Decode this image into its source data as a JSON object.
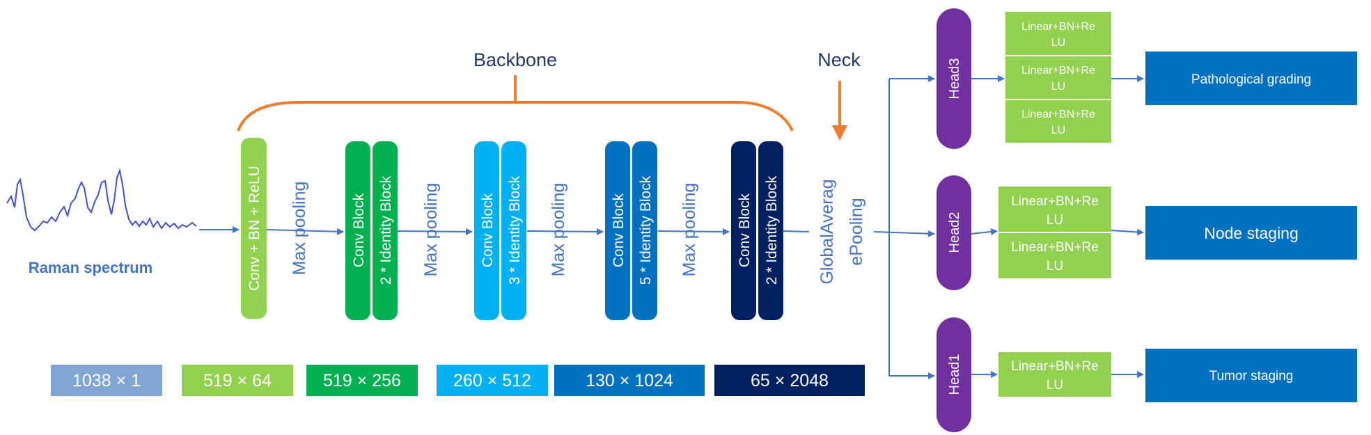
{
  "labels": {
    "backbone": "Backbone",
    "neck": "Neck",
    "raman": "Raman spectrum"
  },
  "blocks": {
    "conv_bn_relu": "Conv + BN + ReLU",
    "max_pool": "Max pooling",
    "conv_block": "Conv Block",
    "id2": "2 * Identity Block",
    "id3": "3 * Identity Block",
    "id5": "5 * Identity Block",
    "gap_line1": "GlobalAverag",
    "gap_line2": "ePooling"
  },
  "dims": [
    "1038 × 1",
    "519 × 64",
    "519 × 256",
    "260 × 512",
    "130 × 1024",
    "65 × 2048"
  ],
  "heads": {
    "head3": "Head3",
    "head2": "Head2",
    "head1": "Head1",
    "lin_a": "Linear+BN+Re",
    "lin_b": "LU"
  },
  "outputs": {
    "pathological": "Pathological grading",
    "node": "Node staging",
    "tumor": "Tumor staging"
  },
  "colors": {
    "arrow": "#4472C4",
    "brace": "#ED7D31",
    "light_green": "#92D050",
    "green": "#00B050",
    "cyan": "#00B0F0",
    "mid_blue": "#0070C0",
    "navy": "#002060",
    "gray_blue": "#7FA6D3",
    "purple": "#7030A0",
    "output_blue": "#0070C0"
  }
}
